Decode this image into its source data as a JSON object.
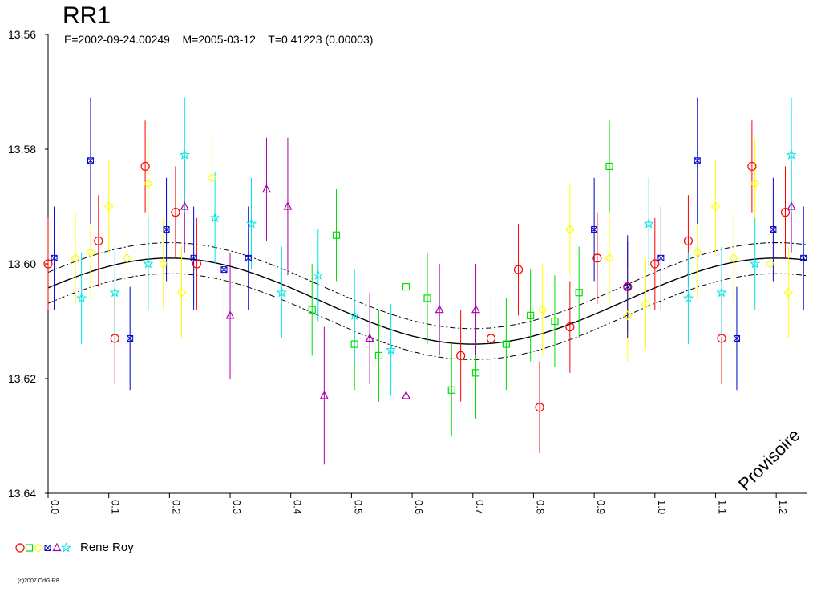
{
  "title": "RR1",
  "subtitle": "E=2002-09-24.00249    M=2005-03-12    T=0.41223 (0.00003)",
  "watermark": "Provisoire",
  "copyright": "(c)2007 OdG-R8",
  "legend": {
    "observer": "Rene Roy"
  },
  "chart_data": {
    "type": "scatter",
    "title": "RR1",
    "xlabel": "",
    "ylabel": "",
    "xlim": [
      0,
      1.25
    ],
    "ylim": [
      13.64,
      13.56
    ],
    "y_inverted": true,
    "x_ticks": [
      "0.0",
      "0.1",
      "0.2",
      "0.3",
      "0.4",
      "0.5",
      "0.6",
      "0.7",
      "0.8",
      "0.9",
      "1.0",
      "1.1",
      "1.2"
    ],
    "y_ticks": [
      "13.56",
      "13.58",
      "13.60",
      "13.62",
      "13.64"
    ],
    "symbols": {
      "circle": {
        "color": "#ff0000"
      },
      "square": {
        "color": "#00dd00"
      },
      "diamond": {
        "color": "#ffff00"
      },
      "xsquare": {
        "color": "#0000cc"
      },
      "triangle": {
        "color": "#aa00aa"
      },
      "star": {
        "color": "#00e5e5"
      }
    },
    "fit": {
      "mean": 13.6065,
      "amplitude": 0.0075,
      "phase_max_bright": 0.2,
      "envelope": 0.0027,
      "label": ""
    },
    "points": [
      {
        "x": 0.0,
        "y": 13.6,
        "err": 0.008,
        "symbol": "circle"
      },
      {
        "x": 0.083,
        "y": 13.596,
        "err": 0.008,
        "symbol": "circle"
      },
      {
        "x": 0.11,
        "y": 13.613,
        "err": 0.008,
        "symbol": "circle"
      },
      {
        "x": 0.16,
        "y": 13.583,
        "err": 0.008,
        "symbol": "circle"
      },
      {
        "x": 0.21,
        "y": 13.591,
        "err": 0.008,
        "symbol": "circle"
      },
      {
        "x": 0.245,
        "y": 13.6,
        "err": 0.008,
        "symbol": "circle"
      },
      {
        "x": 0.68,
        "y": 13.616,
        "err": 0.008,
        "symbol": "circle"
      },
      {
        "x": 0.73,
        "y": 13.613,
        "err": 0.008,
        "symbol": "circle"
      },
      {
        "x": 0.775,
        "y": 13.601,
        "err": 0.008,
        "symbol": "circle"
      },
      {
        "x": 0.81,
        "y": 13.625,
        "err": 0.008,
        "symbol": "circle"
      },
      {
        "x": 0.86,
        "y": 13.611,
        "err": 0.008,
        "symbol": "circle"
      },
      {
        "x": 0.905,
        "y": 13.599,
        "err": 0.008,
        "symbol": "circle"
      },
      {
        "x": 0.955,
        "y": 13.604,
        "err": 0.008,
        "symbol": "circle"
      },
      {
        "x": 1.0,
        "y": 13.6,
        "err": 0.008,
        "symbol": "circle"
      },
      {
        "x": 1.055,
        "y": 13.596,
        "err": 0.008,
        "symbol": "circle"
      },
      {
        "x": 1.11,
        "y": 13.613,
        "err": 0.008,
        "symbol": "circle"
      },
      {
        "x": 1.16,
        "y": 13.583,
        "err": 0.008,
        "symbol": "circle"
      },
      {
        "x": 1.215,
        "y": 13.591,
        "err": 0.008,
        "symbol": "circle"
      },
      {
        "x": 0.435,
        "y": 13.608,
        "err": 0.008,
        "symbol": "square"
      },
      {
        "x": 0.475,
        "y": 13.595,
        "err": 0.008,
        "symbol": "square"
      },
      {
        "x": 0.505,
        "y": 13.614,
        "err": 0.008,
        "symbol": "square"
      },
      {
        "x": 0.545,
        "y": 13.616,
        "err": 0.008,
        "symbol": "square"
      },
      {
        "x": 0.59,
        "y": 13.604,
        "err": 0.008,
        "symbol": "square"
      },
      {
        "x": 0.625,
        "y": 13.606,
        "err": 0.008,
        "symbol": "square"
      },
      {
        "x": 0.665,
        "y": 13.622,
        "err": 0.008,
        "symbol": "square"
      },
      {
        "x": 0.705,
        "y": 13.619,
        "err": 0.008,
        "symbol": "square"
      },
      {
        "x": 0.755,
        "y": 13.614,
        "err": 0.008,
        "symbol": "square"
      },
      {
        "x": 0.795,
        "y": 13.609,
        "err": 0.008,
        "symbol": "square"
      },
      {
        "x": 0.835,
        "y": 13.61,
        "err": 0.008,
        "symbol": "square"
      },
      {
        "x": 0.875,
        "y": 13.605,
        "err": 0.008,
        "symbol": "square"
      },
      {
        "x": 0.925,
        "y": 13.583,
        "err": 0.008,
        "symbol": "square"
      },
      {
        "x": 0.045,
        "y": 13.599,
        "err": 0.008,
        "symbol": "diamond"
      },
      {
        "x": 0.07,
        "y": 13.598,
        "err": 0.008,
        "symbol": "diamond"
      },
      {
        "x": 0.1,
        "y": 13.59,
        "err": 0.008,
        "symbol": "diamond"
      },
      {
        "x": 0.13,
        "y": 13.599,
        "err": 0.008,
        "symbol": "diamond"
      },
      {
        "x": 0.165,
        "y": 13.586,
        "err": 0.008,
        "symbol": "diamond"
      },
      {
        "x": 0.19,
        "y": 13.6,
        "err": 0.008,
        "symbol": "diamond"
      },
      {
        "x": 0.22,
        "y": 13.605,
        "err": 0.008,
        "symbol": "diamond"
      },
      {
        "x": 0.27,
        "y": 13.585,
        "err": 0.008,
        "symbol": "diamond"
      },
      {
        "x": 0.815,
        "y": 13.608,
        "err": 0.008,
        "symbol": "diamond"
      },
      {
        "x": 0.86,
        "y": 13.594,
        "err": 0.008,
        "symbol": "diamond"
      },
      {
        "x": 0.925,
        "y": 13.599,
        "err": 0.008,
        "symbol": "diamond"
      },
      {
        "x": 0.955,
        "y": 13.609,
        "err": 0.008,
        "symbol": "diamond"
      },
      {
        "x": 0.985,
        "y": 13.607,
        "err": 0.008,
        "symbol": "diamond"
      },
      {
        "x": 1.07,
        "y": 13.598,
        "err": 0.008,
        "symbol": "diamond"
      },
      {
        "x": 1.1,
        "y": 13.59,
        "err": 0.008,
        "symbol": "diamond"
      },
      {
        "x": 1.13,
        "y": 13.599,
        "err": 0.008,
        "symbol": "diamond"
      },
      {
        "x": 1.165,
        "y": 13.586,
        "err": 0.008,
        "symbol": "diamond"
      },
      {
        "x": 1.19,
        "y": 13.6,
        "err": 0.008,
        "symbol": "diamond"
      },
      {
        "x": 1.22,
        "y": 13.605,
        "err": 0.008,
        "symbol": "diamond"
      },
      {
        "x": 0.01,
        "y": 13.599,
        "err": 0.009,
        "symbol": "xsquare"
      },
      {
        "x": 0.07,
        "y": 13.582,
        "err": 0.011,
        "symbol": "xsquare"
      },
      {
        "x": 0.135,
        "y": 13.613,
        "err": 0.009,
        "symbol": "xsquare"
      },
      {
        "x": 0.195,
        "y": 13.594,
        "err": 0.009,
        "symbol": "xsquare"
      },
      {
        "x": 0.24,
        "y": 13.599,
        "err": 0.009,
        "symbol": "xsquare"
      },
      {
        "x": 0.29,
        "y": 13.601,
        "err": 0.009,
        "symbol": "xsquare"
      },
      {
        "x": 0.33,
        "y": 13.599,
        "err": 0.009,
        "symbol": "xsquare"
      },
      {
        "x": 0.9,
        "y": 13.594,
        "err": 0.009,
        "symbol": "xsquare"
      },
      {
        "x": 0.955,
        "y": 13.604,
        "err": 0.009,
        "symbol": "xsquare"
      },
      {
        "x": 1.01,
        "y": 13.599,
        "err": 0.009,
        "symbol": "xsquare"
      },
      {
        "x": 1.07,
        "y": 13.582,
        "err": 0.011,
        "symbol": "xsquare"
      },
      {
        "x": 1.135,
        "y": 13.613,
        "err": 0.009,
        "symbol": "xsquare"
      },
      {
        "x": 1.195,
        "y": 13.594,
        "err": 0.009,
        "symbol": "xsquare"
      },
      {
        "x": 1.245,
        "y": 13.599,
        "err": 0.009,
        "symbol": "xsquare"
      },
      {
        "x": 0.225,
        "y": 13.59,
        "err": 0.008,
        "symbol": "triangle"
      },
      {
        "x": 0.3,
        "y": 13.609,
        "err": 0.011,
        "symbol": "triangle"
      },
      {
        "x": 0.36,
        "y": 13.587,
        "err": 0.009,
        "symbol": "triangle"
      },
      {
        "x": 0.395,
        "y": 13.59,
        "err": 0.012,
        "symbol": "triangle"
      },
      {
        "x": 0.455,
        "y": 13.623,
        "err": 0.012,
        "symbol": "triangle"
      },
      {
        "x": 0.53,
        "y": 13.613,
        "err": 0.008,
        "symbol": "triangle"
      },
      {
        "x": 0.59,
        "y": 13.623,
        "err": 0.012,
        "symbol": "triangle"
      },
      {
        "x": 0.645,
        "y": 13.608,
        "err": 0.008,
        "symbol": "triangle"
      },
      {
        "x": 0.705,
        "y": 13.608,
        "err": 0.008,
        "symbol": "triangle"
      },
      {
        "x": 1.225,
        "y": 13.59,
        "err": 0.008,
        "symbol": "triangle"
      },
      {
        "x": 0.055,
        "y": 13.606,
        "err": 0.008,
        "symbol": "star"
      },
      {
        "x": 0.11,
        "y": 13.605,
        "err": 0.008,
        "symbol": "star"
      },
      {
        "x": 0.165,
        "y": 13.6,
        "err": 0.008,
        "symbol": "star"
      },
      {
        "x": 0.225,
        "y": 13.581,
        "err": 0.01,
        "symbol": "star"
      },
      {
        "x": 0.275,
        "y": 13.592,
        "err": 0.008,
        "symbol": "star"
      },
      {
        "x": 0.335,
        "y": 13.593,
        "err": 0.008,
        "symbol": "star"
      },
      {
        "x": 0.385,
        "y": 13.605,
        "err": 0.008,
        "symbol": "star"
      },
      {
        "x": 0.445,
        "y": 13.602,
        "err": 0.008,
        "symbol": "star"
      },
      {
        "x": 0.505,
        "y": 13.609,
        "err": 0.008,
        "symbol": "star"
      },
      {
        "x": 0.565,
        "y": 13.615,
        "err": 0.008,
        "symbol": "star"
      },
      {
        "x": 0.99,
        "y": 13.593,
        "err": 0.008,
        "symbol": "star"
      },
      {
        "x": 1.055,
        "y": 13.606,
        "err": 0.008,
        "symbol": "star"
      },
      {
        "x": 1.11,
        "y": 13.605,
        "err": 0.008,
        "symbol": "star"
      },
      {
        "x": 1.165,
        "y": 13.6,
        "err": 0.008,
        "symbol": "star"
      },
      {
        "x": 1.225,
        "y": 13.581,
        "err": 0.01,
        "symbol": "star"
      }
    ]
  }
}
